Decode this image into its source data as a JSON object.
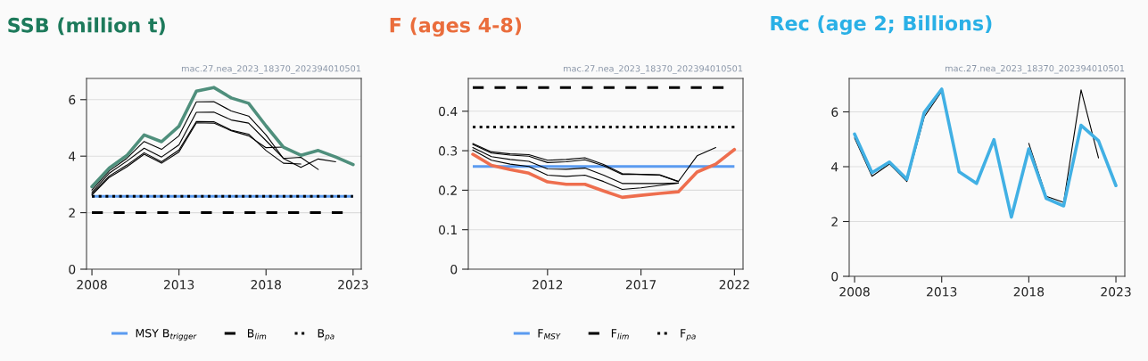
{
  "chart_data": [
    {
      "type": "line",
      "title": "SSB (million t)",
      "annotations": [
        "mac.27.nea_2023_18370_202394010501"
      ],
      "x": [
        2008,
        2009,
        2010,
        2011,
        2012,
        2013,
        2014,
        2015,
        2016,
        2017,
        2018,
        2019,
        2020,
        2021,
        2022,
        2023
      ],
      "series": [
        {
          "color": "#4f8f7c",
          "values": [
            2.92,
            3.58,
            4.02,
            4.75,
            4.51,
            5.06,
            6.3,
            6.43,
            6.06,
            5.87,
            5.07,
            4.32,
            4.03,
            4.2,
            3.97,
            3.7
          ]
        },
        {
          "color": "#000000",
          "values": [
            2.8,
            3.48,
            3.92,
            4.52,
            4.24,
            4.72,
            5.92,
            5.93,
            5.6,
            5.42,
            4.75,
            3.92,
            3.6,
            3.9,
            3.8,
            null
          ]
        },
        {
          "color": "#000000",
          "values": [
            2.72,
            3.4,
            3.82,
            4.28,
            3.97,
            4.4,
            5.55,
            5.56,
            5.28,
            5.17,
            4.55,
            3.92,
            3.96,
            3.53,
            null,
            null
          ]
        },
        {
          "color": "#000000",
          "values": [
            2.66,
            3.3,
            3.68,
            4.12,
            3.8,
            4.22,
            5.23,
            5.22,
            4.92,
            4.78,
            4.2,
            3.75,
            3.72,
            null,
            null,
            null
          ]
        },
        {
          "color": "#000000",
          "values": [
            2.62,
            3.25,
            3.62,
            4.07,
            3.75,
            4.15,
            5.18,
            5.17,
            4.9,
            4.72,
            4.3,
            4.32,
            null,
            null,
            null,
            null
          ]
        }
      ],
      "ref_lines": [
        {
          "axis": "y",
          "value": 2.58,
          "label": "MSY B$_{trigger}$",
          "color": "#5b9bf0",
          "line_style": "solid"
        },
        {
          "axis": "y",
          "value": 2.0,
          "label": "B$_{lim}$",
          "color": "#000000",
          "line_style": "dashed"
        },
        {
          "axis": "y",
          "value": 2.58,
          "label": "B$_{pa}$",
          "color": "#000000",
          "line_style": "dotted"
        }
      ],
      "xlim": [
        2007.69,
        2023.47
      ],
      "xticks": [
        2008,
        2013,
        2018,
        2023
      ],
      "ylim": [
        0,
        6.75
      ],
      "yticks": [
        0,
        2,
        4,
        6
      ],
      "grid": "y",
      "legend": "bottom"
    },
    {
      "type": "line",
      "title": "F (ages 4-8)",
      "annotations": [
        "mac.27.nea_2023_18370_202394010501"
      ],
      "x": [
        2008,
        2009,
        2010,
        2011,
        2012,
        2013,
        2014,
        2015,
        2016,
        2017,
        2018,
        2019,
        2020,
        2021,
        2022
      ],
      "series": [
        {
          "color": "#ee6e4e",
          "values": [
            0.291,
            0.263,
            0.252,
            0.243,
            0.221,
            0.215,
            0.215,
            0.198,
            0.182,
            0.187,
            0.192,
            0.196,
            0.246,
            0.266,
            0.303
          ]
        },
        {
          "color": "#000000",
          "values": [
            0.318,
            0.297,
            0.292,
            0.29,
            0.276,
            0.278,
            0.282,
            0.265,
            0.242,
            0.24,
            0.239,
            0.222,
            0.287,
            0.308,
            null
          ]
        },
        {
          "color": "#000000",
          "values": [
            0.316,
            0.294,
            0.289,
            0.286,
            0.27,
            0.272,
            0.277,
            0.262,
            0.24,
            0.24,
            0.238,
            0.222,
            null,
            null,
            null
          ]
        },
        {
          "color": "#000000",
          "values": [
            0.308,
            0.285,
            0.278,
            0.273,
            0.254,
            0.253,
            0.256,
            0.238,
            0.217,
            0.217,
            0.217,
            0.218,
            null,
            null,
            null
          ]
        },
        {
          "color": "#000000",
          "values": [
            0.302,
            0.276,
            0.266,
            0.26,
            0.238,
            0.235,
            0.238,
            0.222,
            0.202,
            0.206,
            0.212,
            0.218,
            null,
            null,
            null
          ]
        }
      ],
      "ref_lines": [
        {
          "axis": "y",
          "value": 0.26,
          "label": "F$_{MSY}$",
          "color": "#5b9bf0",
          "line_style": "solid"
        },
        {
          "axis": "y",
          "value": 0.46,
          "label": "F$_{lim}$",
          "color": "#000000",
          "line_style": "dashed"
        },
        {
          "axis": "y",
          "value": 0.36,
          "label": "F$_{pa}$",
          "color": "#000000",
          "line_style": "dotted"
        }
      ],
      "xlim": [
        2007.76,
        2022.46
      ],
      "xticks": [
        2012,
        2017,
        2022
      ],
      "ylim": [
        0,
        0.483
      ],
      "yticks": [
        0,
        0.1,
        0.2,
        0.3,
        0.4
      ],
      "grid": "y",
      "legend": "bottom"
    },
    {
      "type": "line",
      "title": "Rec (age 2; Billions)",
      "annotations": [
        "mac.27.nea_2023_18370_202394010501"
      ],
      "x": [
        2008,
        2009,
        2010,
        2011,
        2012,
        2013,
        2014,
        2015,
        2016,
        2017,
        2018,
        2019,
        2020,
        2021,
        2022,
        2023
      ],
      "series": [
        {
          "color": "#41b0e4",
          "values": [
            5.19,
            3.78,
            4.17,
            3.54,
            5.98,
            6.83,
            3.81,
            3.39,
            4.99,
            2.16,
            4.65,
            2.84,
            2.57,
            5.51,
            4.95,
            3.31
          ]
        },
        {
          "color": "#000000",
          "values": [
            5.05,
            3.65,
            4.1,
            3.46,
            5.82,
            6.75,
            null,
            null,
            null,
            null,
            4.85,
            2.92,
            2.7,
            6.8,
            4.32,
            null
          ]
        }
      ],
      "xlim": [
        2007.69,
        2023.51
      ],
      "xticks": [
        2008,
        2013,
        2018,
        2023
      ],
      "ylim": [
        0,
        7.22
      ],
      "yticks": [
        0,
        2,
        4,
        6
      ],
      "grid": "y"
    }
  ]
}
